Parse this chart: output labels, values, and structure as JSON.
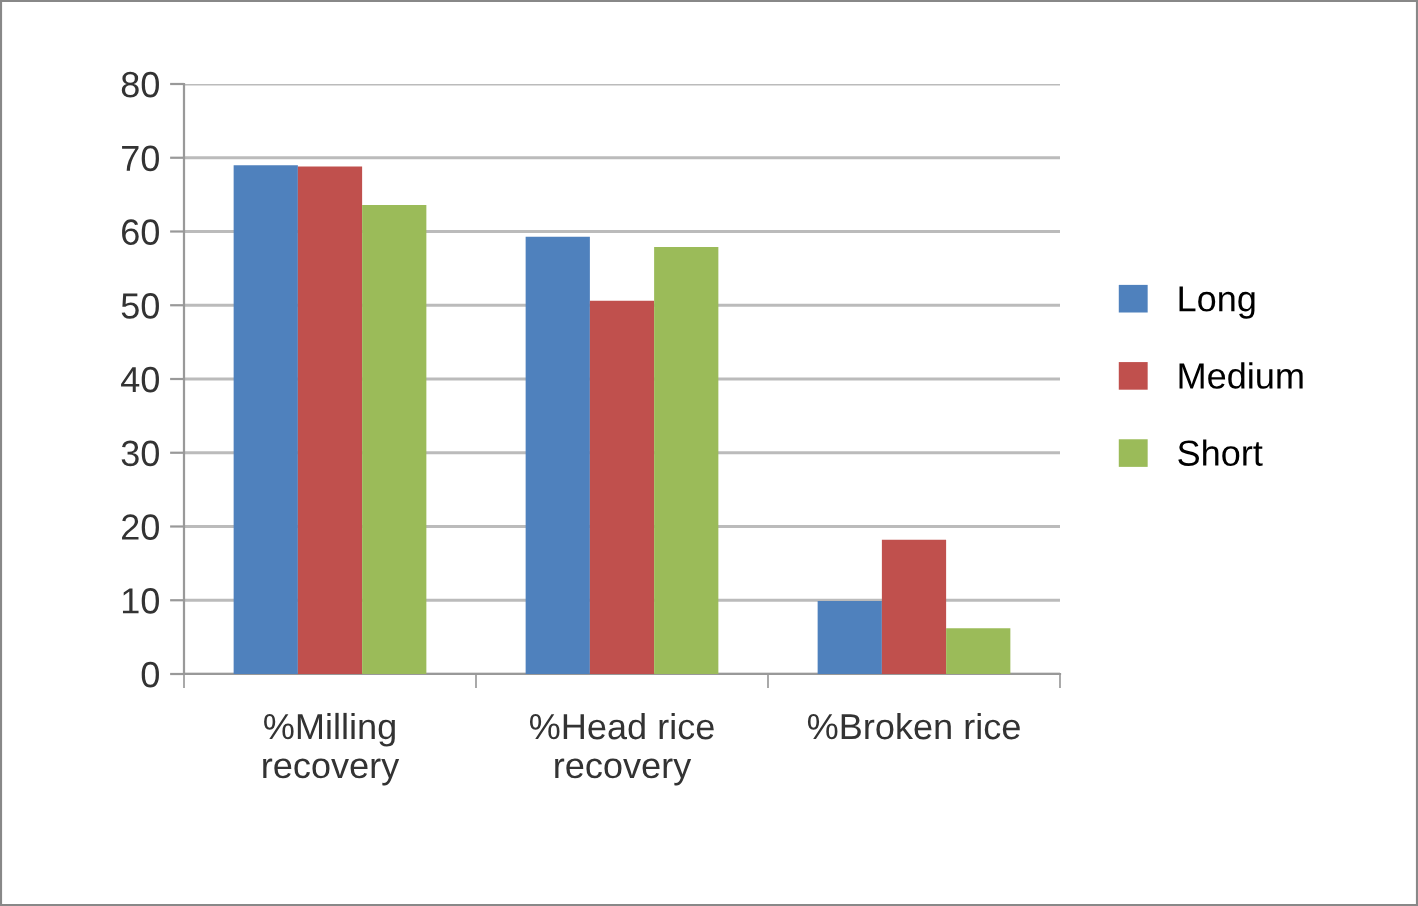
{
  "chart_data": {
    "type": "bar",
    "categories": [
      "%Milling\nrecovery",
      "%Head rice\nrecovery",
      "%Broken rice"
    ],
    "series": [
      {
        "name": "Long",
        "color": "#4f81bd",
        "values": [
          69.0,
          59.3,
          9.9
        ]
      },
      {
        "name": "Medium",
        "color": "#c0504d",
        "values": [
          68.8,
          50.6,
          18.2
        ]
      },
      {
        "name": "Short",
        "color": "#9bbb59",
        "values": [
          63.6,
          57.9,
          6.2
        ]
      }
    ],
    "ylim": [
      0,
      80
    ],
    "yticks": [
      0,
      10,
      20,
      30,
      40,
      50,
      60,
      70,
      80
    ],
    "grid": "y",
    "legend": "right"
  }
}
